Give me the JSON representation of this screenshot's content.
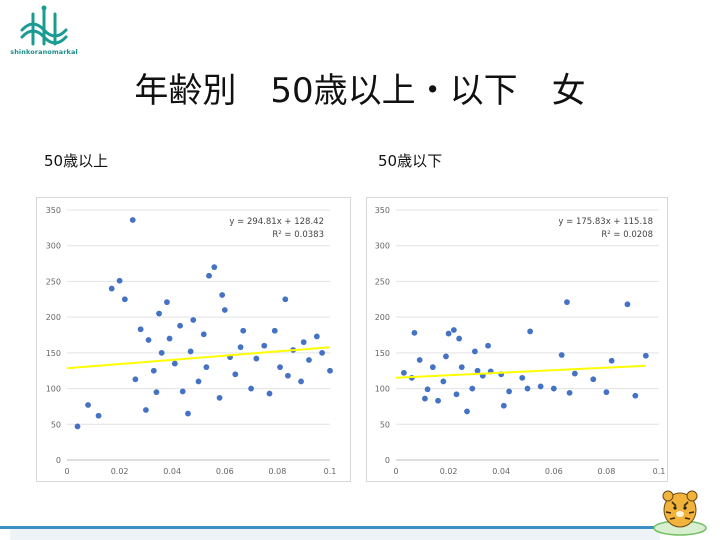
{
  "logo": {
    "text": "shinkoranomarkal"
  },
  "title": "年齢別　50歳以上・以下　女",
  "chart_data": [
    {
      "type": "scatter",
      "label": "50歳以上",
      "title": "",
      "xlim": [
        0,
        0.1
      ],
      "ylim": [
        0,
        350
      ],
      "xticks": [
        "0",
        "0.02",
        "0.04",
        "0.06",
        "0.08",
        "0.1"
      ],
      "yticks": [
        "0",
        "50",
        "100",
        "150",
        "200",
        "250",
        "300",
        "350"
      ],
      "grid": true,
      "trendline": {
        "slope": 294.81,
        "intercept": 128.42
      },
      "equation": "y = 294.81x + 128.42",
      "r2": "R² = 0.0383",
      "point_color": "#4472c4",
      "trend_color": "#ffff00",
      "points": [
        [
          0.025,
          336
        ],
        [
          0.02,
          251
        ],
        [
          0.056,
          270
        ],
        [
          0.054,
          258
        ],
        [
          0.059,
          231
        ],
        [
          0.004,
          47
        ],
        [
          0.008,
          77
        ],
        [
          0.012,
          62
        ],
        [
          0.03,
          70
        ],
        [
          0.046,
          65
        ],
        [
          0.022,
          225
        ],
        [
          0.017,
          240
        ],
        [
          0.083,
          225
        ],
        [
          0.095,
          173
        ],
        [
          0.075,
          160
        ],
        [
          0.089,
          110
        ],
        [
          0.1,
          125
        ],
        [
          0.067,
          181
        ],
        [
          0.06,
          210
        ],
        [
          0.048,
          196
        ],
        [
          0.043,
          188
        ],
        [
          0.038,
          221
        ],
        [
          0.035,
          205
        ],
        [
          0.052,
          176
        ],
        [
          0.072,
          142
        ],
        [
          0.081,
          130
        ],
        [
          0.086,
          154
        ],
        [
          0.092,
          140
        ],
        [
          0.064,
          120
        ],
        [
          0.07,
          100
        ],
        [
          0.077,
          93
        ],
        [
          0.058,
          87
        ],
        [
          0.05,
          110
        ],
        [
          0.044,
          96
        ],
        [
          0.041,
          135
        ],
        [
          0.036,
          150
        ],
        [
          0.033,
          125
        ],
        [
          0.031,
          168
        ],
        [
          0.028,
          183
        ],
        [
          0.026,
          113
        ],
        [
          0.09,
          165
        ],
        [
          0.097,
          150
        ],
        [
          0.079,
          181
        ],
        [
          0.084,
          118
        ],
        [
          0.066,
          158
        ],
        [
          0.062,
          144
        ],
        [
          0.053,
          130
        ],
        [
          0.047,
          152
        ],
        [
          0.039,
          170
        ],
        [
          0.034,
          95
        ]
      ]
    },
    {
      "type": "scatter",
      "label": "50歳以下",
      "title": "",
      "xlim": [
        0,
        0.1
      ],
      "ylim": [
        0,
        350
      ],
      "xticks": [
        "0",
        "0.02",
        "0.04",
        "0.06",
        "0.08",
        "0.1"
      ],
      "yticks": [
        "0",
        "50",
        "100",
        "150",
        "200",
        "250",
        "300",
        "350"
      ],
      "grid": true,
      "trendline": {
        "slope": 175.83,
        "intercept": 115.18
      },
      "equation": "y = 175.83x + 115.18",
      "r2": "R² = 0.0208",
      "point_color": "#4472c4",
      "trend_color": "#ffff00",
      "points": [
        [
          0.065,
          221
        ],
        [
          0.088,
          218
        ],
        [
          0.007,
          178
        ],
        [
          0.02,
          177
        ],
        [
          0.022,
          182
        ],
        [
          0.024,
          170
        ],
        [
          0.051,
          180
        ],
        [
          0.035,
          160
        ],
        [
          0.03,
          152
        ],
        [
          0.063,
          147
        ],
        [
          0.095,
          146
        ],
        [
          0.082,
          139
        ],
        [
          0.068,
          121
        ],
        [
          0.075,
          113
        ],
        [
          0.06,
          100
        ],
        [
          0.055,
          103
        ],
        [
          0.05,
          100
        ],
        [
          0.048,
          115
        ],
        [
          0.041,
          76
        ],
        [
          0.043,
          96
        ],
        [
          0.08,
          95
        ],
        [
          0.091,
          90
        ],
        [
          0.006,
          115
        ],
        [
          0.012,
          99
        ],
        [
          0.016,
          83
        ],
        [
          0.027,
          68
        ],
        [
          0.036,
          124
        ],
        [
          0.04,
          120
        ],
        [
          0.066,
          94
        ],
        [
          0.009,
          140
        ],
        [
          0.014,
          130
        ],
        [
          0.018,
          110
        ],
        [
          0.025,
          130
        ],
        [
          0.029,
          100
        ],
        [
          0.033,
          118
        ],
        [
          0.003,
          122
        ],
        [
          0.011,
          86
        ],
        [
          0.019,
          145
        ],
        [
          0.023,
          92
        ],
        [
          0.031,
          125
        ]
      ]
    }
  ]
}
